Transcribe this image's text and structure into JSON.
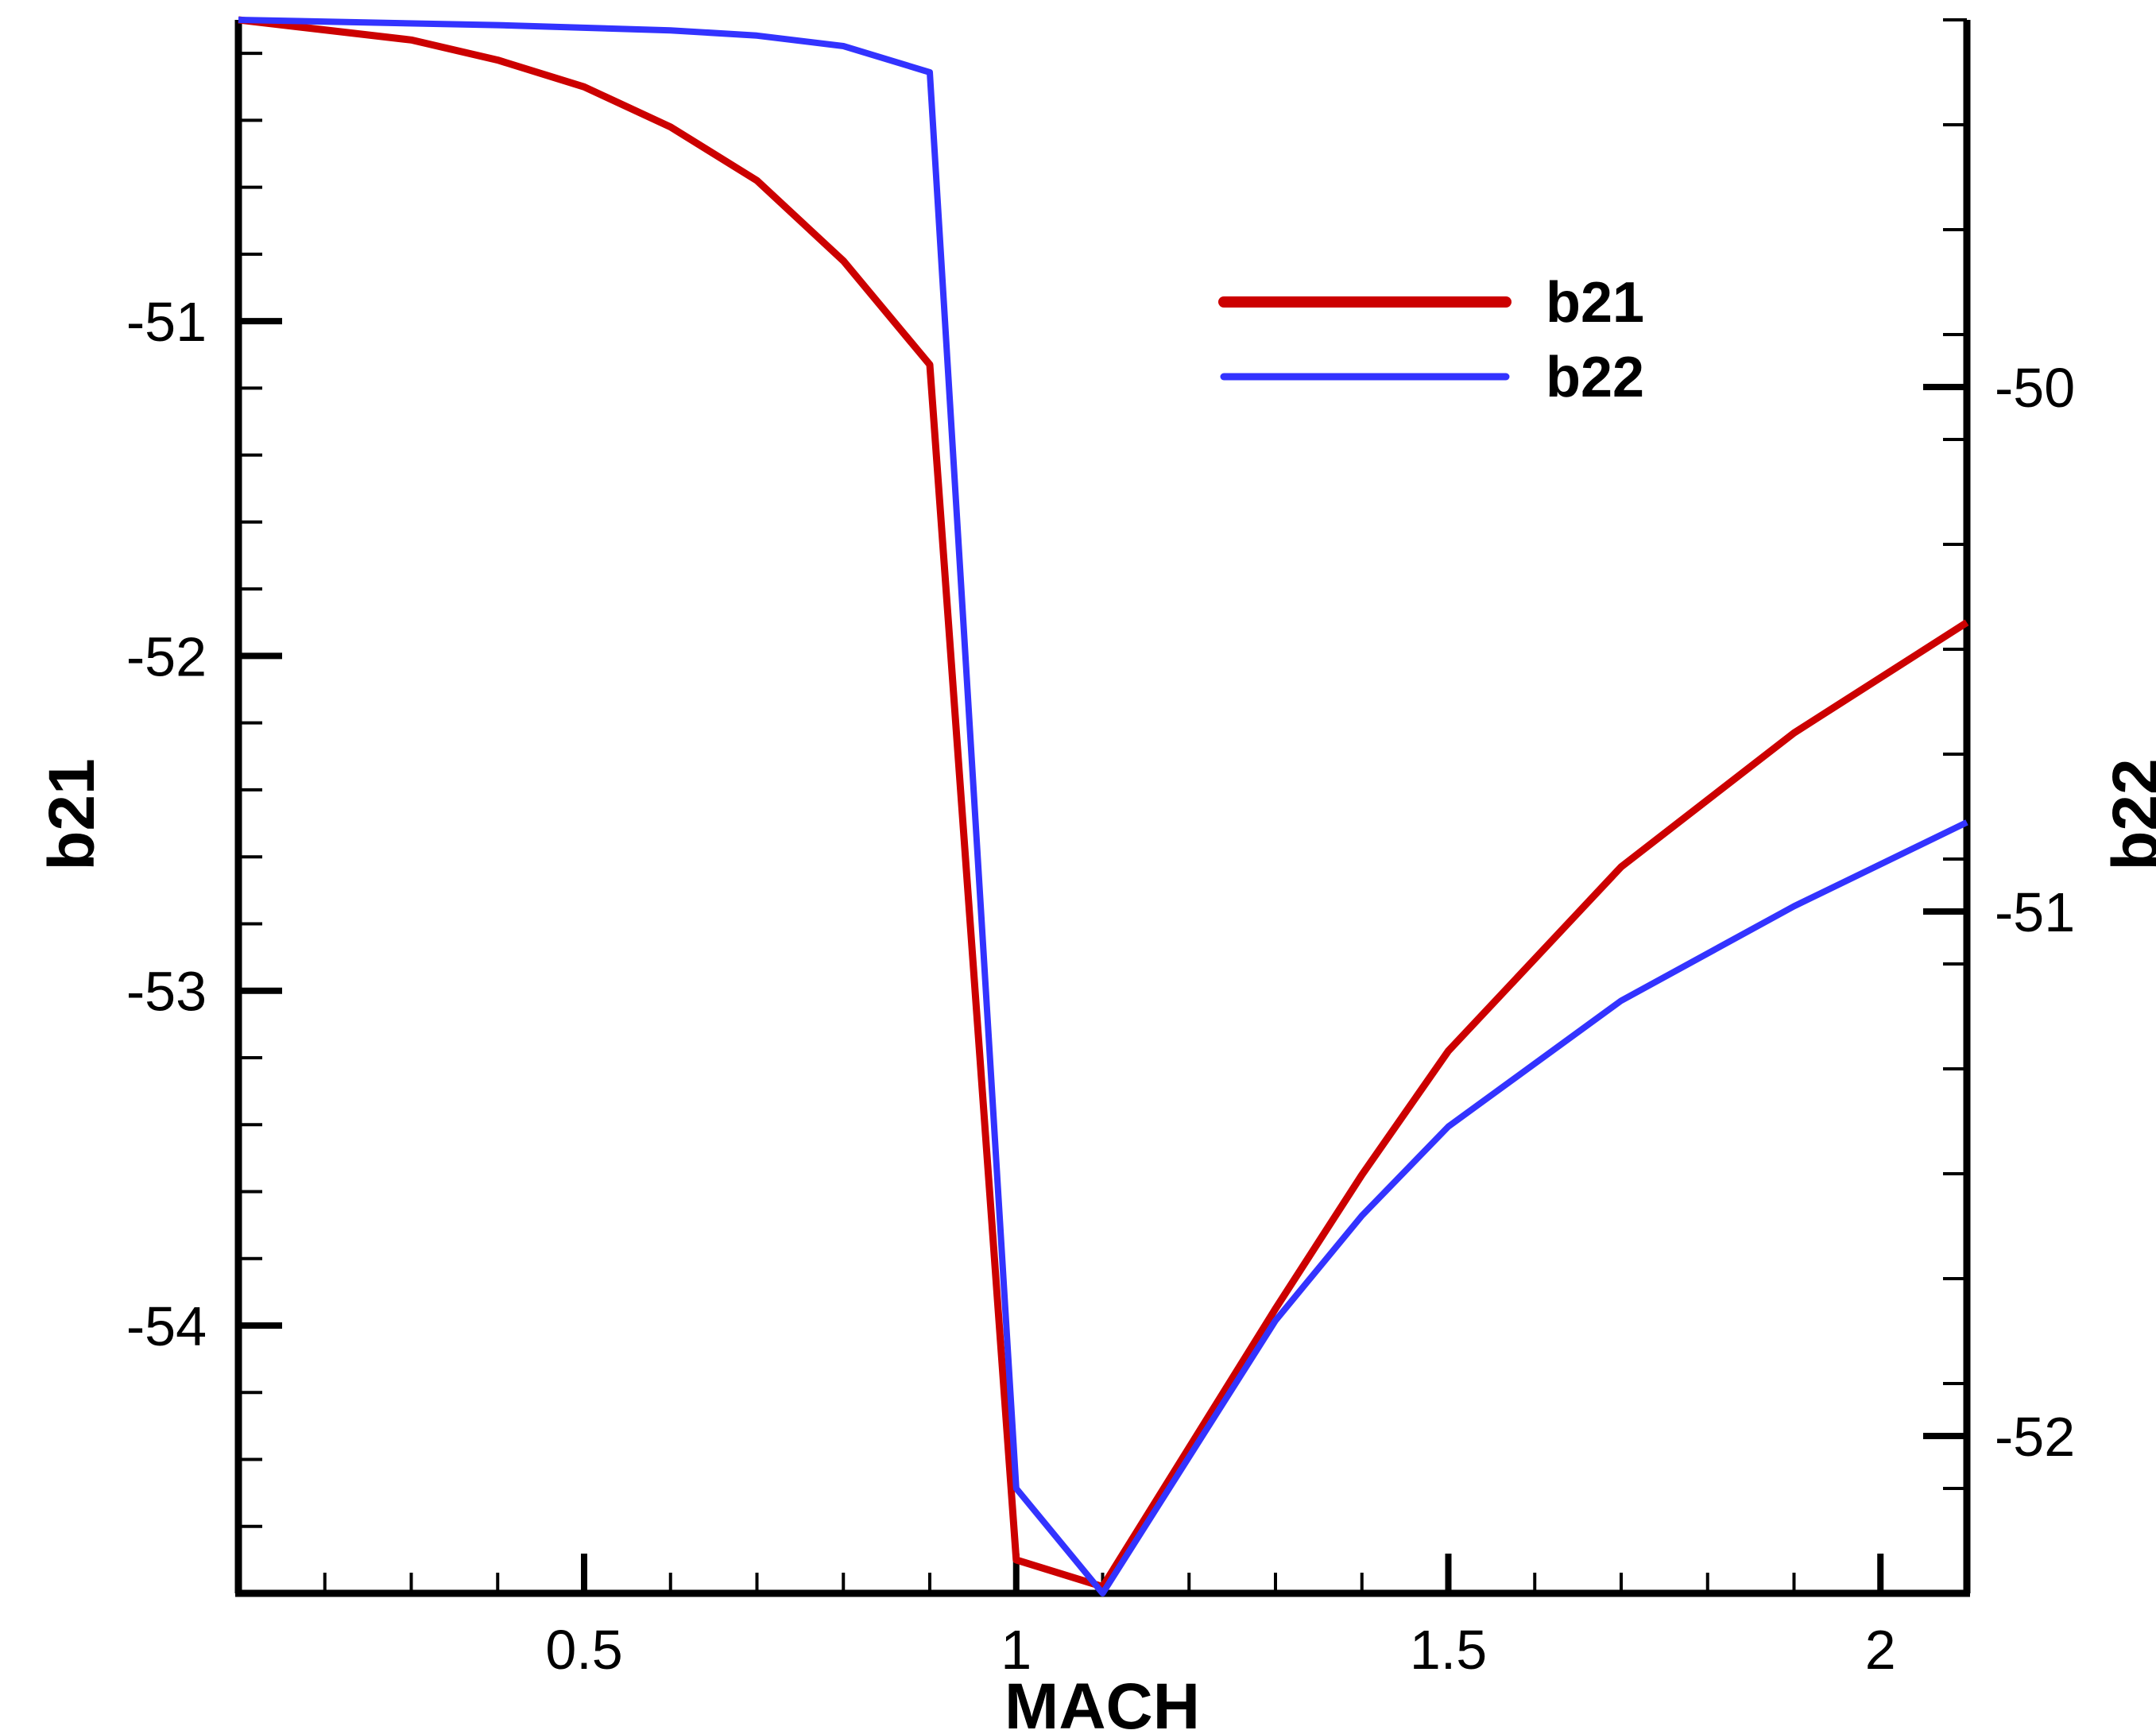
{
  "chart_data": {
    "type": "line",
    "xlabel": "MACH",
    "ylabel_left": "b21",
    "ylabel_right": "b22",
    "xlim": [
      0.1,
      2.1
    ],
    "ylim_left": [
      -54.8,
      -50.1
    ],
    "ylim_right": [
      -52.3,
      -49.3
    ],
    "x_ticks": [
      0.5,
      1,
      1.5,
      2
    ],
    "x_tick_labels": [
      "0.5",
      "1",
      "1.5",
      "2"
    ],
    "y_left_ticks": [
      -51,
      -52,
      -53,
      -54
    ],
    "y_left_tick_labels": [
      "-51",
      "-52",
      "-53",
      "-54"
    ],
    "y_right_ticks": [
      -50,
      -51,
      -52
    ],
    "y_right_tick_labels": [
      "-50",
      "-51",
      "-52"
    ],
    "grid": false,
    "legend_position": "top-right",
    "series": [
      {
        "name": "b21",
        "axis": "left",
        "color": "#cc0000",
        "x": [
          0.1,
          0.3,
          0.4,
          0.5,
          0.6,
          0.7,
          0.8,
          0.9,
          1.0,
          1.1,
          1.3,
          1.4,
          1.5,
          1.7,
          1.9,
          2.1
        ],
        "y": [
          -50.1,
          -50.16,
          -50.22,
          -50.3,
          -50.42,
          -50.58,
          -50.82,
          -51.13,
          -54.7,
          -54.78,
          -53.95,
          -53.55,
          -53.18,
          -52.63,
          -52.23,
          -51.9
        ]
      },
      {
        "name": "b22",
        "axis": "right",
        "color": "#3333ff",
        "x": [
          0.1,
          0.4,
          0.6,
          0.7,
          0.8,
          0.9,
          1.0,
          1.1,
          1.3,
          1.4,
          1.5,
          1.7,
          1.9,
          2.1
        ],
        "y": [
          -49.3,
          -49.31,
          -49.32,
          -49.33,
          -49.35,
          -49.4,
          -52.1,
          -52.3,
          -51.78,
          -51.58,
          -51.41,
          -51.17,
          -50.99,
          -50.83
        ]
      }
    ]
  }
}
